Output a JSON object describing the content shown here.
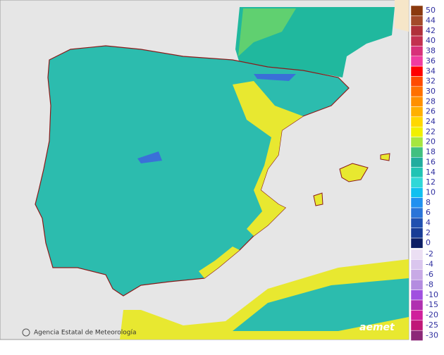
{
  "footer": {
    "agency": "Agencia Estatal de Meteorología",
    "logo": "aemet"
  },
  "legend": {
    "positive": [
      {
        "label": 50,
        "color": "#8b3a0f"
      },
      {
        "label": 44,
        "color": "#a34a2a"
      },
      {
        "label": 42,
        "color": "#b0303a"
      },
      {
        "label": 40,
        "color": "#c33050"
      },
      {
        "label": 38,
        "color": "#d8307a"
      },
      {
        "label": 36,
        "color": "#f03ca0"
      },
      {
        "label": 34,
        "color": "#ff0000"
      },
      {
        "label": 32,
        "color": "#ff4a00"
      },
      {
        "label": 30,
        "color": "#ff7000"
      },
      {
        "label": 28,
        "color": "#ff9000"
      },
      {
        "label": 26,
        "color": "#ffb000"
      },
      {
        "label": 24,
        "color": "#ffd800"
      },
      {
        "label": 22,
        "color": "#f0f000"
      },
      {
        "label": 20,
        "color": "#a6e640"
      },
      {
        "label": 18,
        "color": "#40c080"
      },
      {
        "label": 16,
        "color": "#20ad9e"
      },
      {
        "label": 14,
        "color": "#20c4b4"
      },
      {
        "label": 12,
        "color": "#30d8d8"
      },
      {
        "label": 10,
        "color": "#10c0f0"
      },
      {
        "label": 8,
        "color": "#2090f0"
      },
      {
        "label": 6,
        "color": "#2a74d8"
      },
      {
        "label": 4,
        "color": "#2050b0"
      },
      {
        "label": 2,
        "color": "#183c96"
      },
      {
        "label": 0,
        "color": "#0c1e64"
      }
    ],
    "negative": [
      {
        "label": -2,
        "color": "#ebdff3"
      },
      {
        "label": -4,
        "color": "#dac6ee"
      },
      {
        "label": -6,
        "color": "#c8aae6"
      },
      {
        "label": -8,
        "color": "#b48ce0"
      },
      {
        "label": -10,
        "color": "#a050e0"
      },
      {
        "label": -15,
        "color": "#b030b0"
      },
      {
        "label": -20,
        "color": "#d0209c"
      },
      {
        "label": -25,
        "color": "#c01878"
      },
      {
        "label": -30,
        "color": "#8c2878"
      }
    ]
  }
}
